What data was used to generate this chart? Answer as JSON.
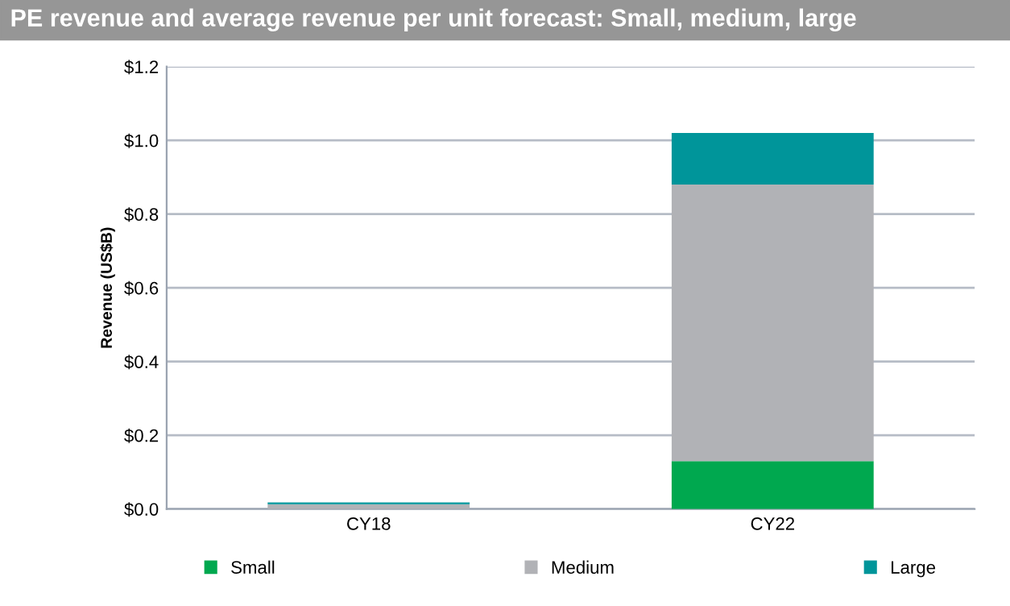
{
  "chart_data": {
    "type": "bar",
    "title": "PE revenue and average revenue per unit forecast: Small, medium, large",
    "ylabel": "Revenue (US$B)",
    "categories": [
      "CY18",
      "CY22"
    ],
    "stacked": true,
    "series": [
      {
        "name": "Small",
        "color": "#00a84f",
        "values": [
          null,
          0.13
        ]
      },
      {
        "name": "Medium",
        "color": "#b1b2b6",
        "values": [
          0.013,
          0.75
        ]
      },
      {
        "name": "Large",
        "color": "#00959a",
        "values": [
          0.005,
          0.14
        ]
      }
    ],
    "ylim": [
      0,
      1.2
    ],
    "yticks": [
      {
        "value": 0,
        "label": "$0.0"
      },
      {
        "value": 0.2,
        "label": "$0.2"
      },
      {
        "value": 0.4,
        "label": "$0.4"
      },
      {
        "value": 0.6,
        "label": "$0.6"
      },
      {
        "value": 0.8,
        "label": "$0.8"
      },
      {
        "value": 1.0,
        "label": "$1.0"
      },
      {
        "value": 1.2,
        "label": "$1.2"
      }
    ],
    "grid": "y",
    "legend": "bottom"
  }
}
